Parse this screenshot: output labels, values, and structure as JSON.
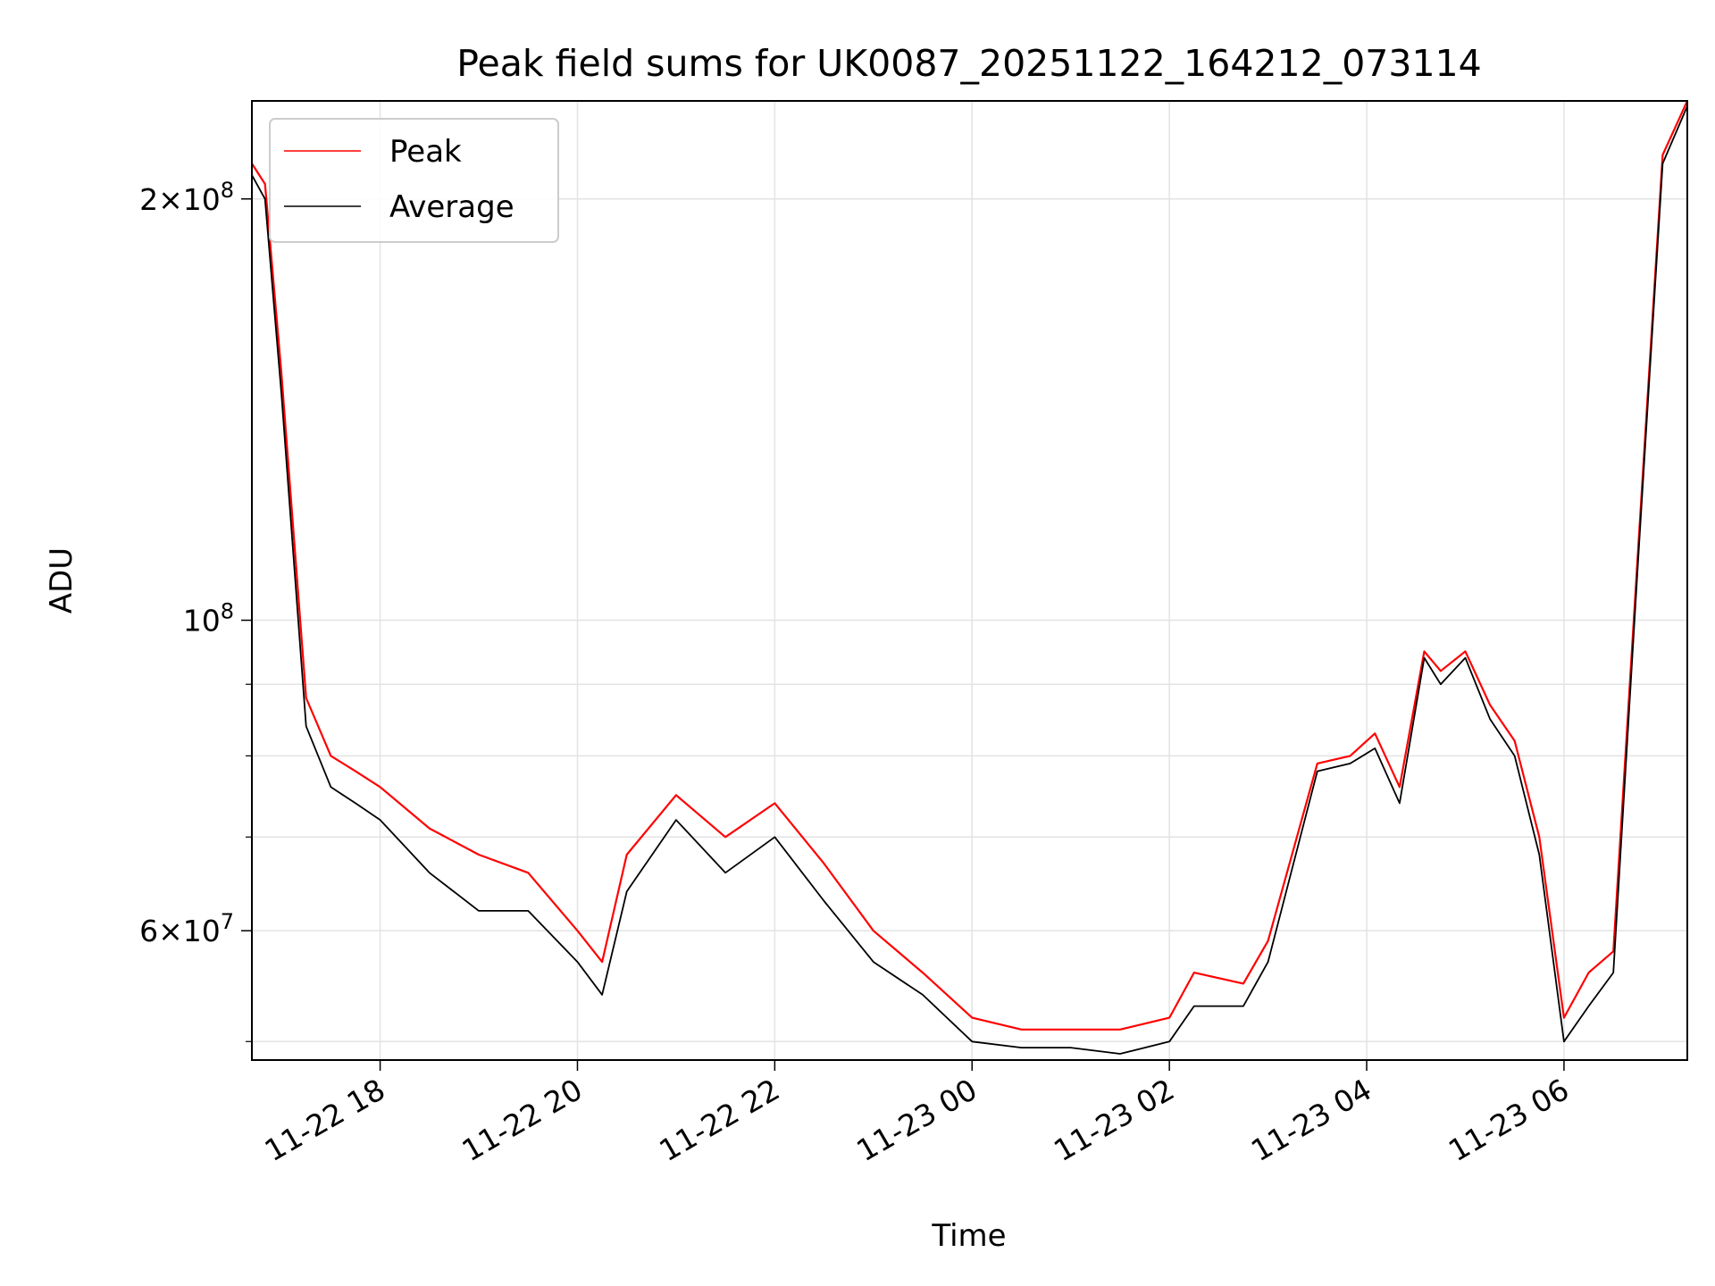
{
  "chart_data": {
    "type": "line",
    "title": "Peak field sums for UK0087_20251122_164212_073114",
    "xlabel": "Time",
    "ylabel": "ADU",
    "x_range": [
      "2025-11-22 16:42",
      "2025-11-23 07:15"
    ],
    "x_ticks": [
      {
        "value": "2025-11-22 18:00",
        "label": "11-22 18"
      },
      {
        "value": "2025-11-22 20:00",
        "label": "11-22 20"
      },
      {
        "value": "2025-11-22 22:00",
        "label": "11-22 22"
      },
      {
        "value": "2025-11-23 00:00",
        "label": "11-23 00"
      },
      {
        "value": "2025-11-23 02:00",
        "label": "11-23 02"
      },
      {
        "value": "2025-11-23 04:00",
        "label": "11-23 04"
      },
      {
        "value": "2025-11-23 06:00",
        "label": "11-23 06"
      }
    ],
    "y_scale": "log",
    "ylim": [
      48500000,
      235000000
    ],
    "y_major_ticks": [
      {
        "value": 60000000,
        "label_base": "6×10",
        "label_exp": "7"
      },
      {
        "value": 100000000,
        "label_base": "10",
        "label_exp": "8"
      },
      {
        "value": 200000000,
        "label_base": "2×10",
        "label_exp": "8"
      }
    ],
    "y_minor_ticks": [
      50000000,
      70000000,
      80000000,
      90000000
    ],
    "grid": true,
    "legend_position": "top-left",
    "series": [
      {
        "name": "Peak",
        "color": "#ff0000",
        "style": "thin line with frequent spikes",
        "x": [
          "2025-11-22 16:42",
          "2025-11-22 16:50",
          "2025-11-22 17:00",
          "2025-11-22 17:15",
          "2025-11-22 17:30",
          "2025-11-22 17:45",
          "2025-11-22 18:00",
          "2025-11-22 18:30",
          "2025-11-22 19:00",
          "2025-11-22 19:30",
          "2025-11-22 20:00",
          "2025-11-22 20:15",
          "2025-11-22 20:30",
          "2025-11-22 21:00",
          "2025-11-22 21:30",
          "2025-11-22 22:00",
          "2025-11-22 22:30",
          "2025-11-22 23:00",
          "2025-11-22 23:30",
          "2025-11-23 00:00",
          "2025-11-23 00:30",
          "2025-11-23 01:00",
          "2025-11-23 01:30",
          "2025-11-23 02:00",
          "2025-11-23 02:15",
          "2025-11-23 02:45",
          "2025-11-23 03:00",
          "2025-11-23 03:30",
          "2025-11-23 03:50",
          "2025-11-23 04:05",
          "2025-11-23 04:20",
          "2025-11-23 04:35",
          "2025-11-23 04:45",
          "2025-11-23 05:00",
          "2025-11-23 05:15",
          "2025-11-23 05:30",
          "2025-11-23 05:45",
          "2025-11-23 06:00",
          "2025-11-23 06:15",
          "2025-11-23 06:30",
          "2025-11-23 06:45",
          "2025-11-23 07:00",
          "2025-11-23 07:15"
        ],
        "values": [
          212000000,
          205000000,
          150000000,
          88000000,
          80000000,
          78000000,
          76000000,
          71000000,
          68000000,
          66000000,
          60000000,
          57000000,
          68000000,
          75000000,
          70000000,
          74000000,
          67000000,
          60000000,
          56000000,
          52000000,
          51000000,
          51000000,
          51000000,
          52000000,
          56000000,
          55000000,
          59000000,
          79000000,
          80000000,
          83000000,
          76000000,
          95000000,
          92000000,
          95000000,
          87000000,
          82000000,
          70000000,
          52000000,
          56000000,
          58000000,
          112000000,
          215000000,
          235000000
        ]
      },
      {
        "name": "Average",
        "color": "#000000",
        "style": "thin line",
        "x": [
          "2025-11-22 16:42",
          "2025-11-22 16:50",
          "2025-11-22 17:00",
          "2025-11-22 17:15",
          "2025-11-22 17:30",
          "2025-11-22 17:45",
          "2025-11-22 18:00",
          "2025-11-22 18:30",
          "2025-11-22 19:00",
          "2025-11-22 19:30",
          "2025-11-22 20:00",
          "2025-11-22 20:15",
          "2025-11-22 20:30",
          "2025-11-22 21:00",
          "2025-11-22 21:30",
          "2025-11-22 22:00",
          "2025-11-22 22:30",
          "2025-11-22 23:00",
          "2025-11-22 23:30",
          "2025-11-23 00:00",
          "2025-11-23 00:30",
          "2025-11-23 01:00",
          "2025-11-23 01:30",
          "2025-11-23 02:00",
          "2025-11-23 02:15",
          "2025-11-23 02:45",
          "2025-11-23 03:00",
          "2025-11-23 03:30",
          "2025-11-23 03:50",
          "2025-11-23 04:05",
          "2025-11-23 04:20",
          "2025-11-23 04:35",
          "2025-11-23 04:45",
          "2025-11-23 05:00",
          "2025-11-23 05:15",
          "2025-11-23 05:30",
          "2025-11-23 05:45",
          "2025-11-23 06:00",
          "2025-11-23 06:15",
          "2025-11-23 06:30",
          "2025-11-23 06:45",
          "2025-11-23 07:00",
          "2025-11-23 07:15"
        ],
        "values": [
          208000000,
          200000000,
          145000000,
          84000000,
          76000000,
          74000000,
          72000000,
          66000000,
          62000000,
          62000000,
          57000000,
          54000000,
          64000000,
          72000000,
          66000000,
          70000000,
          63000000,
          57000000,
          54000000,
          50000000,
          49500000,
          49500000,
          49000000,
          50000000,
          53000000,
          53000000,
          57000000,
          78000000,
          79000000,
          81000000,
          74000000,
          94000000,
          90000000,
          94000000,
          85000000,
          80000000,
          68000000,
          50000000,
          53000000,
          56000000,
          110000000,
          212000000,
          233000000
        ]
      }
    ]
  }
}
